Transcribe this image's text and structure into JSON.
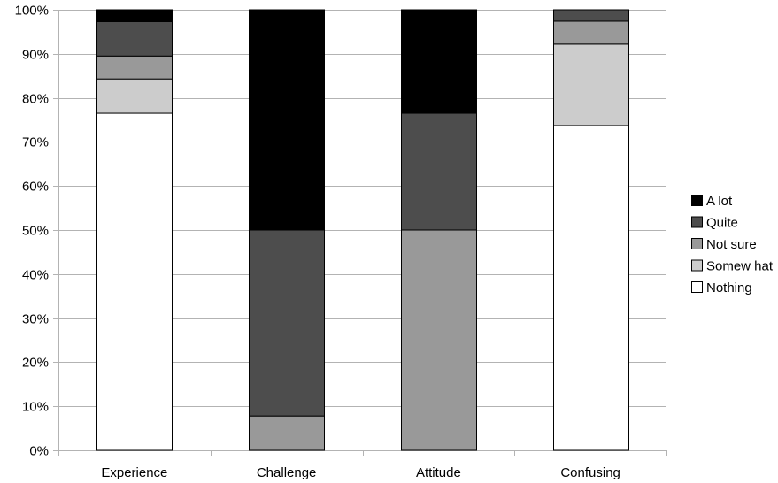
{
  "chart_data": {
    "type": "bar",
    "stacked": true,
    "percent": true,
    "title": "",
    "xlabel": "",
    "ylabel": "",
    "categories": [
      "Experience",
      "Challenge",
      "Attitude",
      "Confusing"
    ],
    "ylim": [
      0,
      100
    ],
    "yticks": [
      "0%",
      "10%",
      "20%",
      "30%",
      "40%",
      "50%",
      "60%",
      "70%",
      "80%",
      "90%",
      "100%"
    ],
    "grid": true,
    "legend_position": "right",
    "series": [
      {
        "name": "Nothing",
        "color": "#ffffff",
        "values": [
          76.5,
          0,
          0,
          73.7
        ]
      },
      {
        "name": "Somew hat",
        "color": "#cccccc",
        "values": [
          7.8,
          0,
          0,
          18.5
        ]
      },
      {
        "name": "Not sure",
        "color": "#999999",
        "values": [
          5.2,
          7.8,
          50.0,
          5.2
        ]
      },
      {
        "name": "Quite",
        "color": "#4d4d4d",
        "values": [
          7.8,
          42.2,
          26.5,
          2.6
        ]
      },
      {
        "name": "A lot",
        "color": "#000000",
        "values": [
          2.7,
          50.0,
          23.5,
          0.0
        ]
      }
    ],
    "legend_order": [
      "A lot",
      "Quite",
      "Not sure",
      "Somew hat",
      "Nothing"
    ]
  }
}
